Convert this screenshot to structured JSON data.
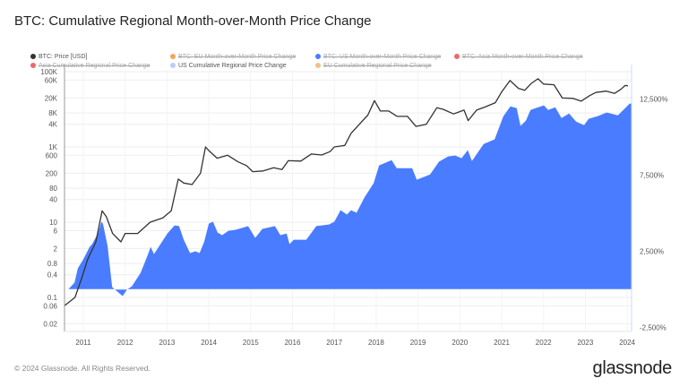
{
  "title": "BTC: Cumulative Regional Month-over-Month Price Change",
  "footer": "© 2024 Glassnode. All Rights Reserved.",
  "logo": "glassnode",
  "legend": [
    {
      "label": "BTC: Price [USD]",
      "color": "#333333",
      "active": true
    },
    {
      "label": "BTC: EU Month-over-Month Price Change",
      "color": "#f2a65a",
      "active": false
    },
    {
      "label": "BTC: US Month-over-Month Price Change",
      "color": "#4a7cff",
      "active": false
    },
    {
      "label": "BTC: Asia Month-over-Month Price Change",
      "color": "#f0686a",
      "active": false
    },
    {
      "label": "Asia Cumulative Regional Price Change",
      "color": "#f0686a",
      "active": false
    },
    {
      "label": "US Cumulative Regional Price Change",
      "color": "#b9cdfd",
      "active": true
    },
    {
      "label": "EU Cumulative Regional Price Change",
      "color": "#f2c08a",
      "active": false
    }
  ],
  "chart_data": {
    "type": "line+area",
    "title": "BTC: Cumulative Regional Month-over-Month Price Change",
    "x_ticks": [
      "2011",
      "2012",
      "2013",
      "2014",
      "2015",
      "2016",
      "2017",
      "2018",
      "2019",
      "2020",
      "2021",
      "2022",
      "2023",
      "2024"
    ],
    "xlim": [
      2010.55,
      2024.1
    ],
    "y_left": {
      "scale": "log",
      "ticks": [
        "100K",
        "60K",
        "20K",
        "8K",
        "4K",
        "1K",
        "600",
        "200",
        "80",
        "40",
        "10",
        "6",
        "2",
        "0.8",
        "0.4",
        "0.1",
        "0.06",
        "0.02"
      ],
      "tick_values": [
        100000,
        60000,
        20000,
        8000,
        4000,
        1000,
        600,
        200,
        80,
        40,
        10,
        6,
        2,
        0.8,
        0.4,
        0.1,
        0.06,
        0.02
      ]
    },
    "y_right": {
      "scale": "linear",
      "ticks": [
        "12,500%",
        "7,500%",
        "2,500%",
        "-2,500%"
      ],
      "tick_values": [
        12500,
        7500,
        2500,
        -2500
      ]
    },
    "grid": true,
    "legend_position": "top",
    "series": [
      {
        "name": "BTC: Price [USD]",
        "axis": "left",
        "kind": "line",
        "color": "#333333",
        "x": [
          2010.55,
          2010.8,
          2010.95,
          2011.1,
          2011.3,
          2011.45,
          2011.55,
          2011.7,
          2011.9,
          2012.0,
          2012.3,
          2012.6,
          2012.9,
          2013.1,
          2013.27,
          2013.4,
          2013.6,
          2013.8,
          2013.92,
          2014.0,
          2014.2,
          2014.45,
          2014.7,
          2014.9,
          2015.05,
          2015.3,
          2015.55,
          2015.75,
          2015.9,
          2016.2,
          2016.45,
          2016.7,
          2016.9,
          2017.0,
          2017.25,
          2017.4,
          2017.6,
          2017.8,
          2017.96,
          2018.1,
          2018.3,
          2018.5,
          2018.75,
          2018.95,
          2019.2,
          2019.45,
          2019.6,
          2019.85,
          2020.1,
          2020.2,
          2020.4,
          2020.6,
          2020.85,
          2021.0,
          2021.2,
          2021.4,
          2021.55,
          2021.7,
          2021.87,
          2022.0,
          2022.25,
          2022.45,
          2022.7,
          2022.9,
          2023.1,
          2023.25,
          2023.5,
          2023.7,
          2023.85,
          2023.95,
          2024.05
        ],
        "y": [
          0.06,
          0.1,
          0.3,
          1,
          3,
          20,
          14,
          5,
          3,
          5,
          5,
          10,
          13,
          20,
          140,
          110,
          100,
          200,
          1000,
          800,
          500,
          600,
          400,
          320,
          220,
          230,
          280,
          250,
          430,
          420,
          650,
          610,
          750,
          1000,
          1100,
          2300,
          4000,
          7000,
          17000,
          9000,
          9000,
          6500,
          6500,
          3500,
          4000,
          11000,
          10000,
          7500,
          9500,
          5000,
          9500,
          11500,
          15000,
          29000,
          58000,
          36000,
          32000,
          48000,
          65000,
          47000,
          45000,
          20000,
          19500,
          16500,
          23000,
          28000,
          30500,
          26500,
          34000,
          43000,
          42000
        ]
      },
      {
        "name": "US Cumulative Regional Price Change",
        "axis": "right",
        "kind": "area",
        "color": "#4a7cff",
        "x": [
          2010.64,
          2010.79,
          2010.87,
          2011.0,
          2011.15,
          2011.21,
          2011.36,
          2011.43,
          2011.47,
          2011.58,
          2011.69,
          2011.75,
          2011.94,
          2012.05,
          2012.16,
          2012.37,
          2012.54,
          2012.61,
          2012.69,
          2012.8,
          2013.01,
          2013.18,
          2013.29,
          2013.4,
          2013.55,
          2013.68,
          2013.78,
          2013.89,
          2014.0,
          2014.1,
          2014.21,
          2014.32,
          2014.47,
          2014.64,
          2014.79,
          2014.94,
          2015.11,
          2015.28,
          2015.58,
          2015.71,
          2015.86,
          2015.93,
          2016.03,
          2016.33,
          2016.57,
          2016.87,
          2017.0,
          2017.15,
          2017.3,
          2017.4,
          2017.53,
          2017.72,
          2017.94,
          2018.07,
          2018.37,
          2018.49,
          2018.86,
          2018.97,
          2019.29,
          2019.5,
          2019.72,
          2019.89,
          2020.04,
          2020.19,
          2020.29,
          2020.57,
          2020.83,
          2021.04,
          2021.21,
          2021.36,
          2021.45,
          2021.58,
          2021.69,
          2021.81,
          2022.01,
          2022.11,
          2022.28,
          2022.43,
          2022.61,
          2022.78,
          2022.97,
          2023.08,
          2023.29,
          2023.51,
          2023.78,
          2024.06
        ],
        "y": [
          0,
          440,
          1380,
          1970,
          2790,
          2970,
          3730,
          4440,
          4320,
          2850,
          150,
          0,
          -440,
          0,
          200,
          1090,
          2260,
          2790,
          2320,
          2790,
          3670,
          4200,
          4150,
          3260,
          2380,
          2500,
          2380,
          3140,
          4320,
          4440,
          3730,
          3560,
          3850,
          3910,
          4030,
          4150,
          3380,
          3970,
          4150,
          3560,
          3670,
          2970,
          3260,
          3260,
          4150,
          4260,
          4440,
          5200,
          4910,
          5200,
          5030,
          6030,
          6970,
          8140,
          8490,
          7960,
          7960,
          7200,
          7550,
          8380,
          8730,
          8790,
          8610,
          9140,
          8430,
          9550,
          9850,
          11370,
          12020,
          11900,
          10730,
          11080,
          11780,
          11900,
          12080,
          11780,
          11960,
          11250,
          11550,
          11020,
          10780,
          11200,
          11370,
          11610,
          11430,
          12200
        ]
      }
    ]
  }
}
